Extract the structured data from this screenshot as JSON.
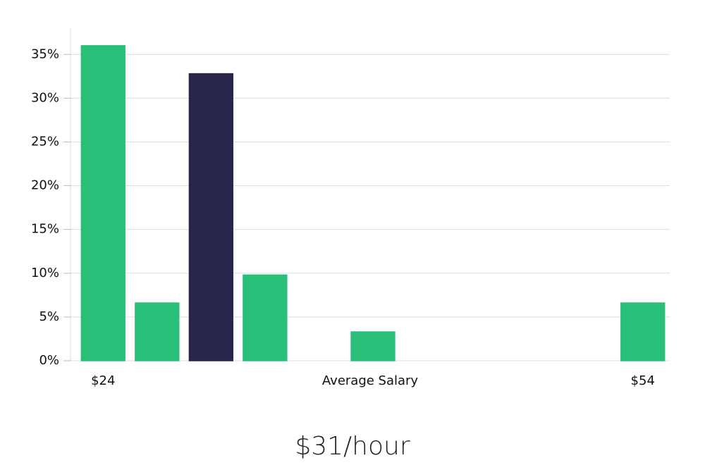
{
  "chart_data": {
    "type": "bar",
    "categories": [
      "$24",
      null,
      null,
      null,
      null,
      null,
      null,
      null,
      null,
      null,
      "$54"
    ],
    "x_label": "Average Salary",
    "values": [
      36,
      6.6,
      32.8,
      9.8,
      0,
      3.3,
      0,
      0,
      0,
      0,
      6.6
    ],
    "colors": [
      "#2abf78",
      "#2abf78",
      "#28254a",
      "#2abf78",
      "#2abf78",
      "#2abf78",
      "#2abf78",
      "#2abf78",
      "#2abf78",
      "#2abf78",
      "#2abf78"
    ],
    "ylim": [
      0,
      38
    ],
    "yticks": [
      {
        "value": 0,
        "label": "0%"
      },
      {
        "value": 5,
        "label": "5%"
      },
      {
        "value": 10,
        "label": "10%"
      },
      {
        "value": 15,
        "label": "15%"
      },
      {
        "value": 20,
        "label": "20%"
      },
      {
        "value": 25,
        "label": "25%"
      },
      {
        "value": 30,
        "label": "30%"
      },
      {
        "value": 35,
        "label": "35%"
      }
    ],
    "grid": true,
    "subtitle": "$31/hour"
  }
}
